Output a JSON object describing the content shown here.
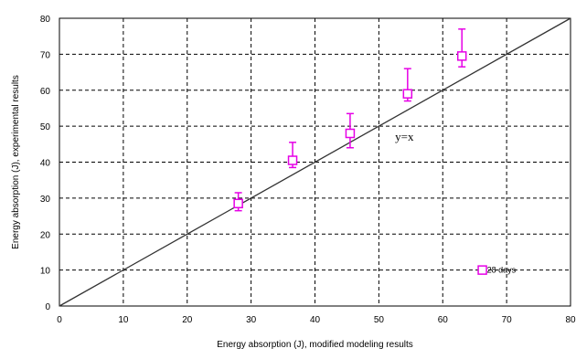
{
  "chart_data": {
    "type": "scatter",
    "xlabel": "Energy absorption (J), modified modeling results",
    "ylabel": "Energy absorption (J), experimental results",
    "xlim": [
      0,
      80
    ],
    "ylim": [
      0,
      80
    ],
    "x_ticks": [
      0,
      10,
      20,
      30,
      40,
      50,
      60,
      70,
      80
    ],
    "y_ticks": [
      0,
      10,
      20,
      30,
      40,
      50,
      60,
      70,
      80
    ],
    "grid": true,
    "legend_position": "bottom-right",
    "series": [
      {
        "name": "28 days",
        "marker": "open-square",
        "color": "#e600e6",
        "points": [
          {
            "x": 28,
            "y": 28.5,
            "err_low": 26.5,
            "err_high": 31.5
          },
          {
            "x": 36.5,
            "y": 40.5,
            "err_low": 38.5,
            "err_high": 45.5
          },
          {
            "x": 45.5,
            "y": 48,
            "err_low": 44,
            "err_high": 53.5
          },
          {
            "x": 54.5,
            "y": 59,
            "err_low": 57,
            "err_high": 66
          },
          {
            "x": 63,
            "y": 69.5,
            "err_low": 66.5,
            "err_high": 77
          }
        ]
      }
    ],
    "reference_line": {
      "label": "y=x",
      "from": [
        0,
        0
      ],
      "to": [
        80,
        80
      ],
      "color": "#333333"
    }
  }
}
